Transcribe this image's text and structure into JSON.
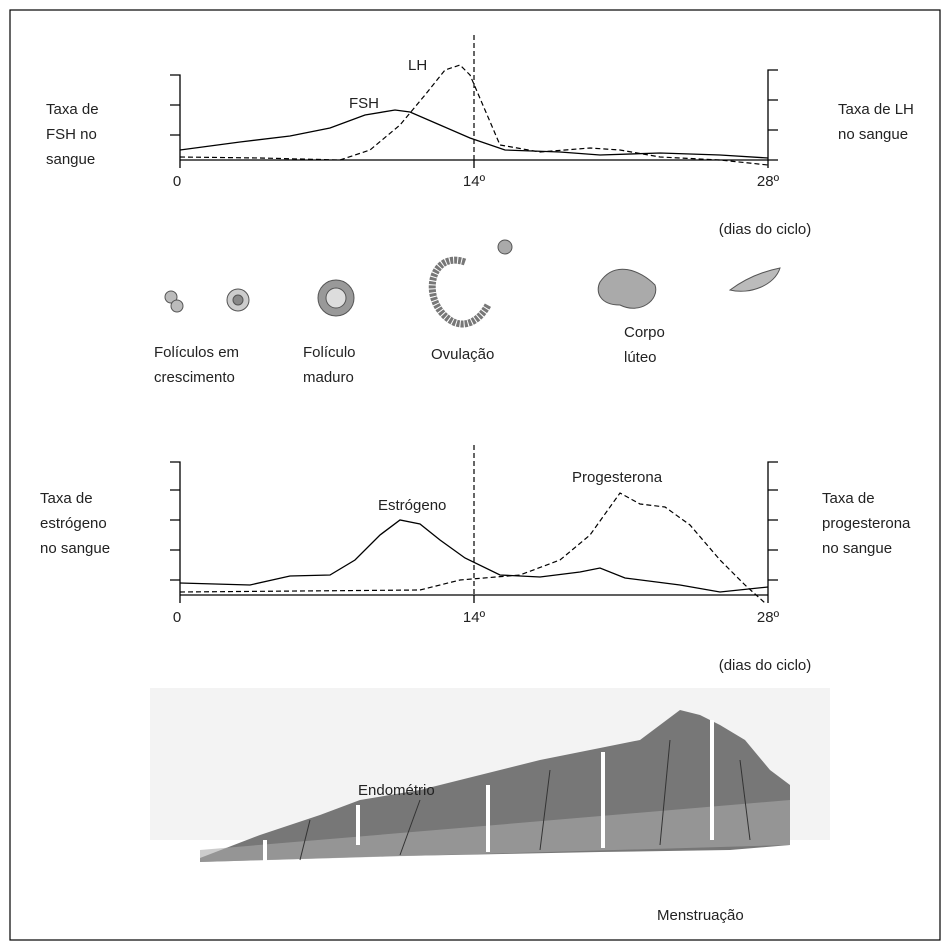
{
  "hormones_top": {
    "left_label": [
      "Taxa de",
      "FSH no",
      "sangue"
    ],
    "right_label": [
      "Taxa de LH",
      "no sangue"
    ],
    "curve_labels": [
      "LH",
      "FSH"
    ],
    "x_labels": [
      "0",
      "14º",
      "28º"
    ],
    "x_caption": "(dias do ciclo)"
  },
  "ovary": {
    "stages": [
      {
        "lines": [
          "Folículos em",
          "crescimento"
        ]
      },
      {
        "lines": [
          "Folículo",
          "maduro"
        ]
      },
      {
        "lines": [
          "Ovulação"
        ]
      },
      {
        "lines": [
          "Corpo",
          "lúteo"
        ]
      }
    ]
  },
  "hormones_bottom": {
    "left_label": [
      "Taxa de",
      "estrógeno",
      "no sangue"
    ],
    "right_label": [
      "Taxa de",
      "progesterona",
      "no sangue"
    ],
    "curve_labels": [
      "Estrógeno",
      "Progesterona"
    ],
    "x_labels": [
      "0",
      "14º",
      "28º"
    ],
    "x_caption": "(dias do ciclo)"
  },
  "uterus": {
    "label": "Endométrio",
    "caption": "Menstruação"
  }
}
